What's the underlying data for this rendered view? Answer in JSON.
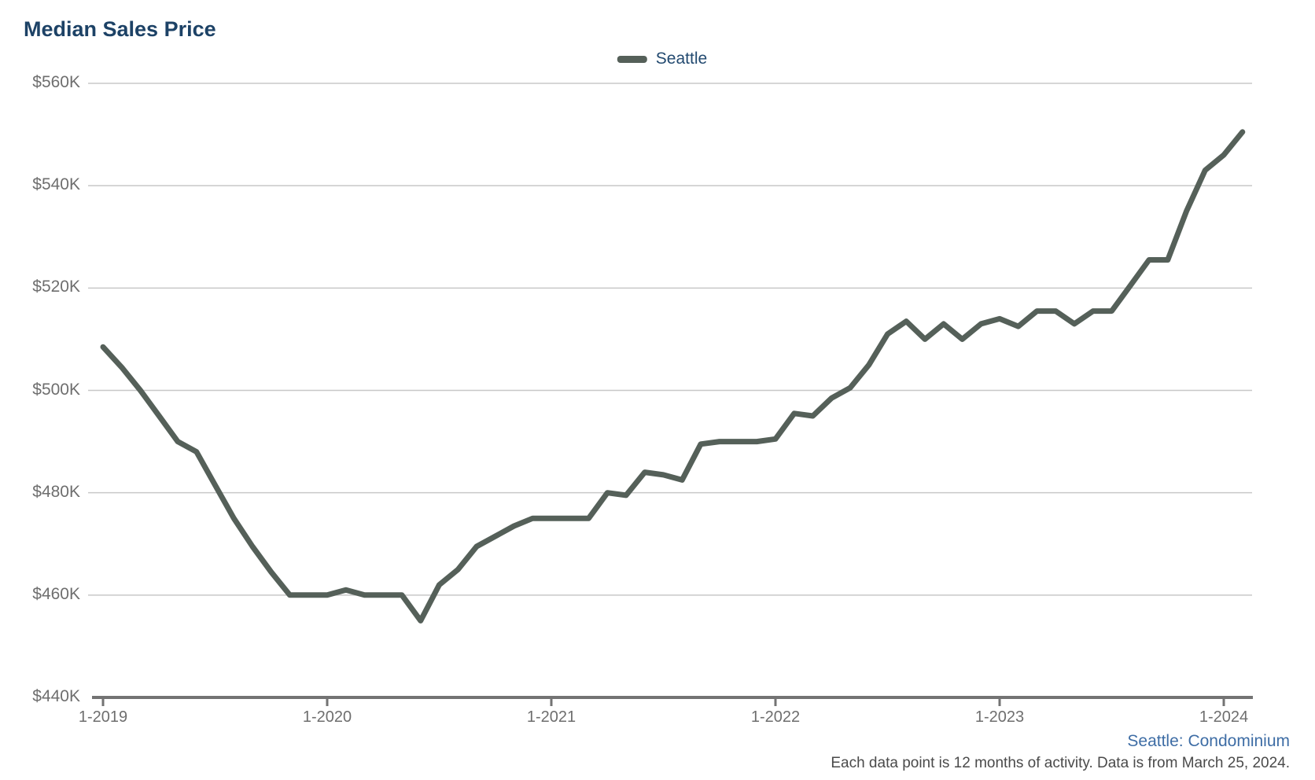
{
  "title": "Median Sales Price",
  "legend": {
    "label": "Seattle",
    "swatch_color": "#556059"
  },
  "footer": {
    "series_note": "Seattle: Condominium",
    "data_note": "Each data point is 12 months of activity. Data is from March 25, 2024."
  },
  "colors": {
    "background": "#ffffff",
    "title": "#1d4266",
    "legend_label": "#234a70",
    "line": "#556059",
    "grid": "#c8c8c8",
    "axis": "#737373",
    "axis_label": "#6e6e6e",
    "series_note": "#3e6da5",
    "data_note": "#4a4a4a"
  },
  "chart_data": {
    "type": "line",
    "title": "Median Sales Price",
    "series_name": "Seattle",
    "unit": "USD thousands",
    "grid": "horizontal",
    "legend_position": "top-center",
    "ylim": [
      440,
      560
    ],
    "y_ticks": [
      440,
      460,
      480,
      500,
      520,
      540,
      560
    ],
    "y_tick_labels": [
      "$440K",
      "$460K",
      "$480K",
      "$500K",
      "$520K",
      "$540K",
      "$560K"
    ],
    "x_tick_indices": [
      0,
      12,
      24,
      36,
      48,
      60
    ],
    "x_tick_labels": [
      "1-2019",
      "1-2020",
      "1-2021",
      "1-2022",
      "1-2023",
      "1-2024"
    ],
    "x": [
      "1-2019",
      "2-2019",
      "3-2019",
      "4-2019",
      "5-2019",
      "6-2019",
      "7-2019",
      "8-2019",
      "9-2019",
      "10-2019",
      "11-2019",
      "12-2019",
      "1-2020",
      "2-2020",
      "3-2020",
      "4-2020",
      "5-2020",
      "6-2020",
      "7-2020",
      "8-2020",
      "9-2020",
      "10-2020",
      "11-2020",
      "12-2020",
      "1-2021",
      "2-2021",
      "3-2021",
      "4-2021",
      "5-2021",
      "6-2021",
      "7-2021",
      "8-2021",
      "9-2021",
      "10-2021",
      "11-2021",
      "12-2021",
      "1-2022",
      "2-2022",
      "3-2022",
      "4-2022",
      "5-2022",
      "6-2022",
      "7-2022",
      "8-2022",
      "9-2022",
      "10-2022",
      "11-2022",
      "12-2022",
      "1-2023",
      "2-2023",
      "3-2023",
      "4-2023",
      "5-2023",
      "6-2023",
      "7-2023",
      "8-2023",
      "9-2023",
      "10-2023",
      "11-2023",
      "12-2023",
      "1-2024",
      "2-2024"
    ],
    "values": [
      508.5,
      504.5,
      500,
      495,
      490,
      488,
      481.5,
      475,
      469.5,
      464.5,
      460,
      460,
      460,
      461,
      460,
      460,
      460,
      455,
      462,
      465,
      469.5,
      471.5,
      473.5,
      475,
      475,
      475,
      475,
      480,
      479.5,
      484,
      483.5,
      482.5,
      489.5,
      490,
      490,
      490,
      490.5,
      495.5,
      495,
      498.5,
      500.5,
      505,
      511,
      513.5,
      510,
      513,
      510,
      513,
      514,
      512.5,
      515.5,
      515.5,
      513,
      515.5,
      515.5,
      520.5,
      525.5,
      525.5,
      535,
      543,
      546,
      550.5
    ]
  }
}
